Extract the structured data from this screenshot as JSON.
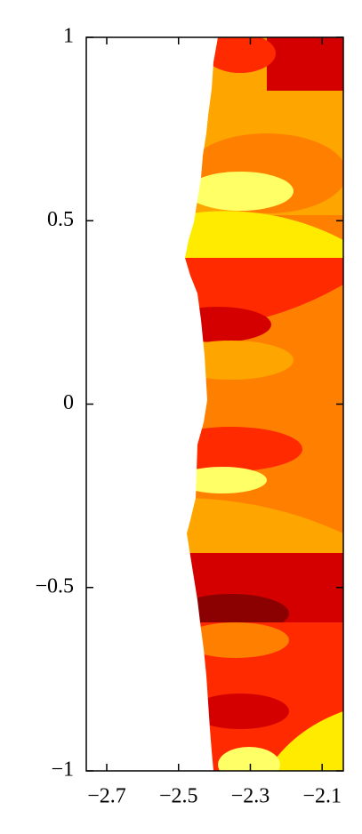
{
  "chart_data": {
    "type": "fractal",
    "xlim": [
      -2.757,
      -2.041
    ],
    "ylim": [
      -1,
      1
    ],
    "xticks": [
      {
        "value": -2.7,
        "label": "−2.7"
      },
      {
        "value": -2.5,
        "label": "−2.5"
      },
      {
        "value": -2.3,
        "label": "−2.3"
      },
      {
        "value": -2.1,
        "label": "−2.1"
      }
    ],
    "yticks": [
      {
        "value": -1,
        "label": "−1"
      },
      {
        "value": -0.5,
        "label": "−0.5"
      },
      0,
      0.5,
      1
    ]
  }
}
